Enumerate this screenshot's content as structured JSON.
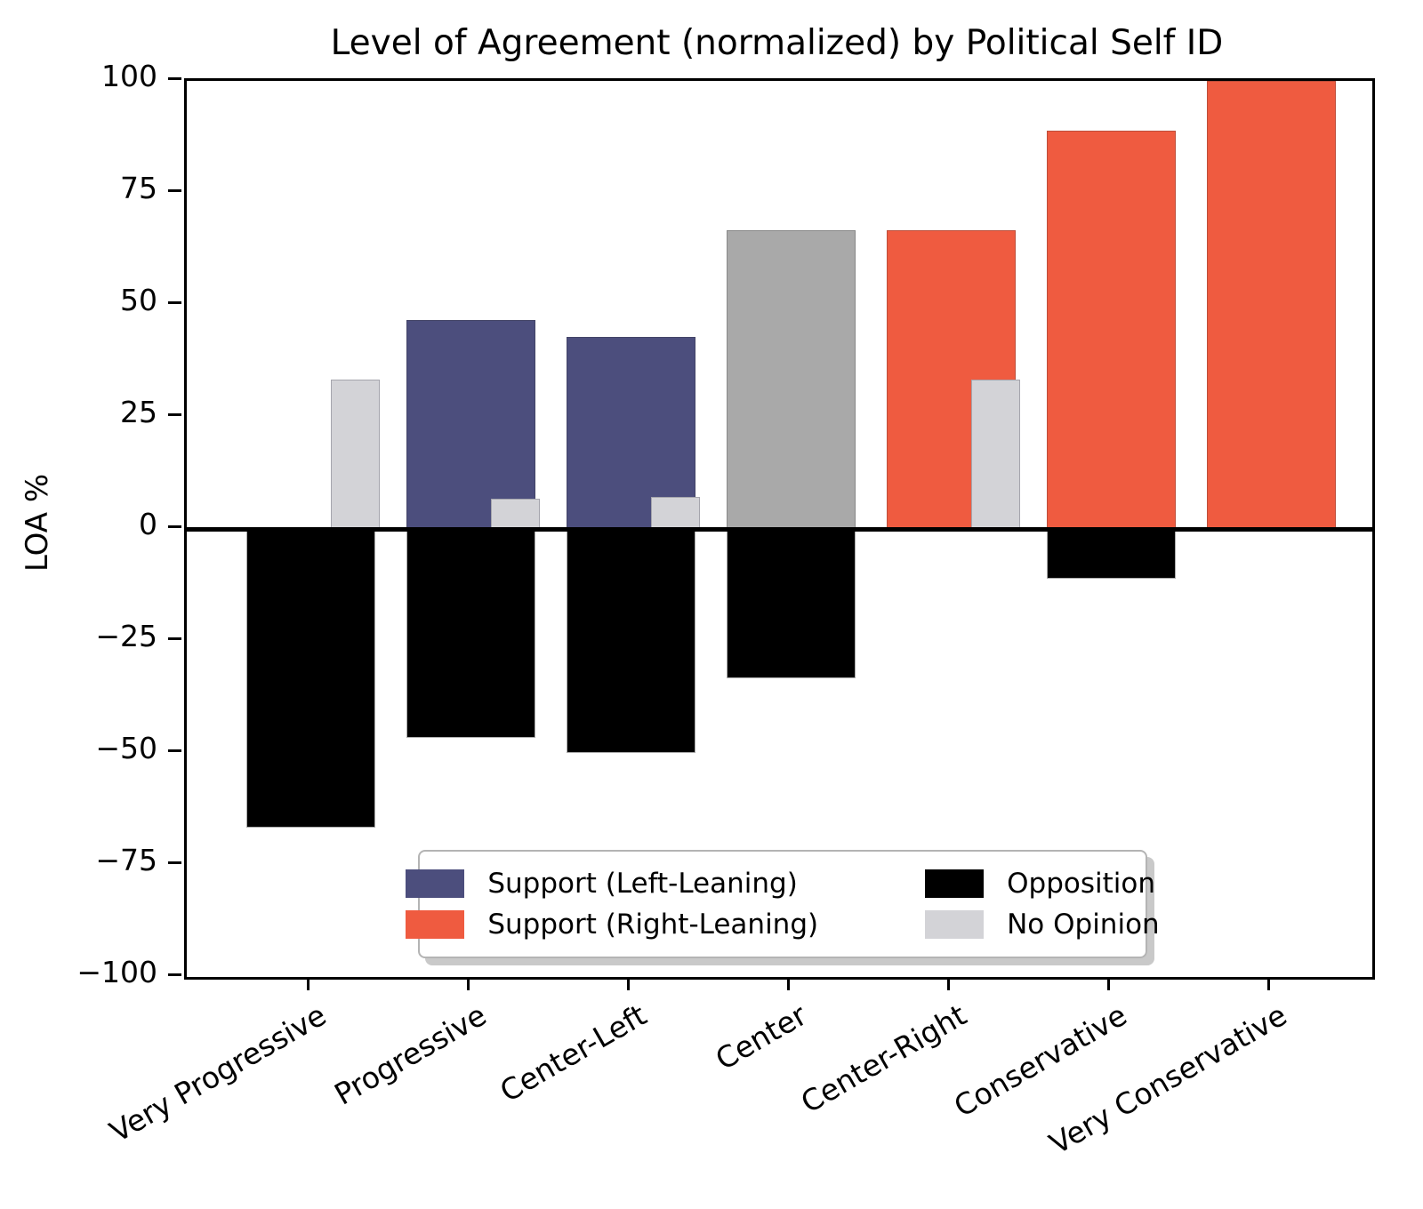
{
  "chart_data": {
    "type": "bar",
    "title": "Level of Agreement (normalized) by Political Self ID",
    "xlabel": "",
    "ylabel": "LOA %",
    "ylim": [
      -100,
      100
    ],
    "yticks": [
      100,
      75,
      50,
      25,
      0,
      -25,
      -50,
      -75,
      -100
    ],
    "grid": false,
    "categories": [
      "Very Progressive",
      "Progressive",
      "Center-Left",
      "Center",
      "Center-Right",
      "Conservative",
      "Very Conservative"
    ],
    "series": [
      {
        "name": "Support",
        "values": [
          0,
          46.7,
          42.9,
          66.7,
          66.7,
          88.9,
          100
        ],
        "bar_colors": [
          "#4C4E7D",
          "#4C4E7D",
          "#4C4E7D",
          "#A9A9A9",
          "#EF5B40",
          "#EF5B40",
          "#EF5B40"
        ]
      },
      {
        "name": "Opposition",
        "color": "#000000",
        "values": [
          -66.7,
          -46.7,
          -50.0,
          -33.3,
          0,
          -11.1,
          0
        ]
      },
      {
        "name": "No Opinion",
        "color": "#D3D3D7",
        "values": [
          33.3,
          6.7,
          7.1,
          0,
          33.3,
          0,
          0
        ]
      }
    ],
    "legend": {
      "position": "lower center",
      "entries": [
        {
          "label": "Support (Left-Leaning)",
          "color": "#4C4E7D"
        },
        {
          "label": "Support (Right-Leaning)",
          "color": "#EF5B40"
        },
        {
          "label": "Opposition",
          "color": "#000000"
        },
        {
          "label": "No Opinion",
          "color": "#D3D3D7"
        }
      ]
    }
  }
}
